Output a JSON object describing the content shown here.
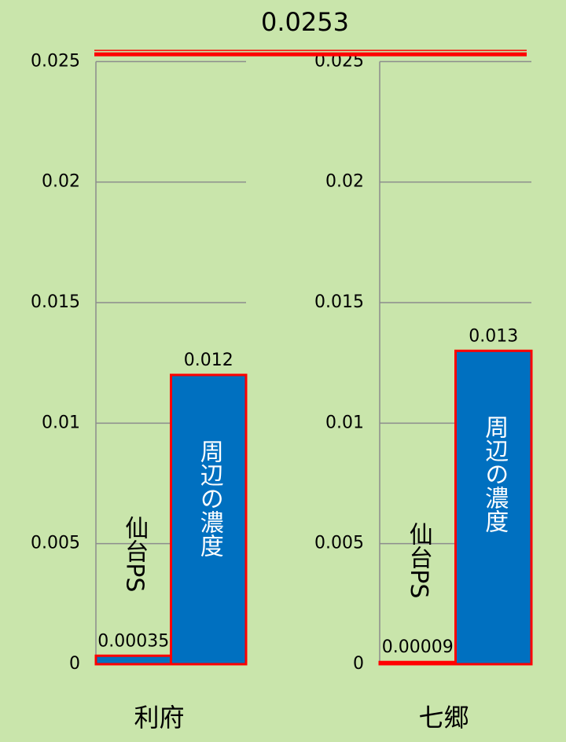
{
  "chart_data": [
    {
      "type": "bar",
      "title": "利府",
      "categories": [
        "仙台PS",
        "周辺の濃度"
      ],
      "values": [
        0.00035,
        0.012
      ],
      "color": "#0070c0",
      "edge_color": "#ff0000",
      "ylim": [
        0,
        0.0255
      ],
      "yticks": [
        0,
        0.005,
        0.01,
        0.015,
        0.02,
        0.025
      ],
      "grid": true
    },
    {
      "type": "bar",
      "title": "七郷",
      "categories": [
        "仙台PS",
        "周辺の濃度"
      ],
      "values": [
        9e-05,
        0.013
      ],
      "color": "#0070c0",
      "edge_color": "#ff0000",
      "ylim": [
        0,
        0.0255
      ],
      "yticks": [
        0,
        0.005,
        0.01,
        0.015,
        0.02,
        0.025
      ],
      "grid": true
    }
  ],
  "reference_line": {
    "value": 0.0253,
    "color": "#ff0000"
  }
}
